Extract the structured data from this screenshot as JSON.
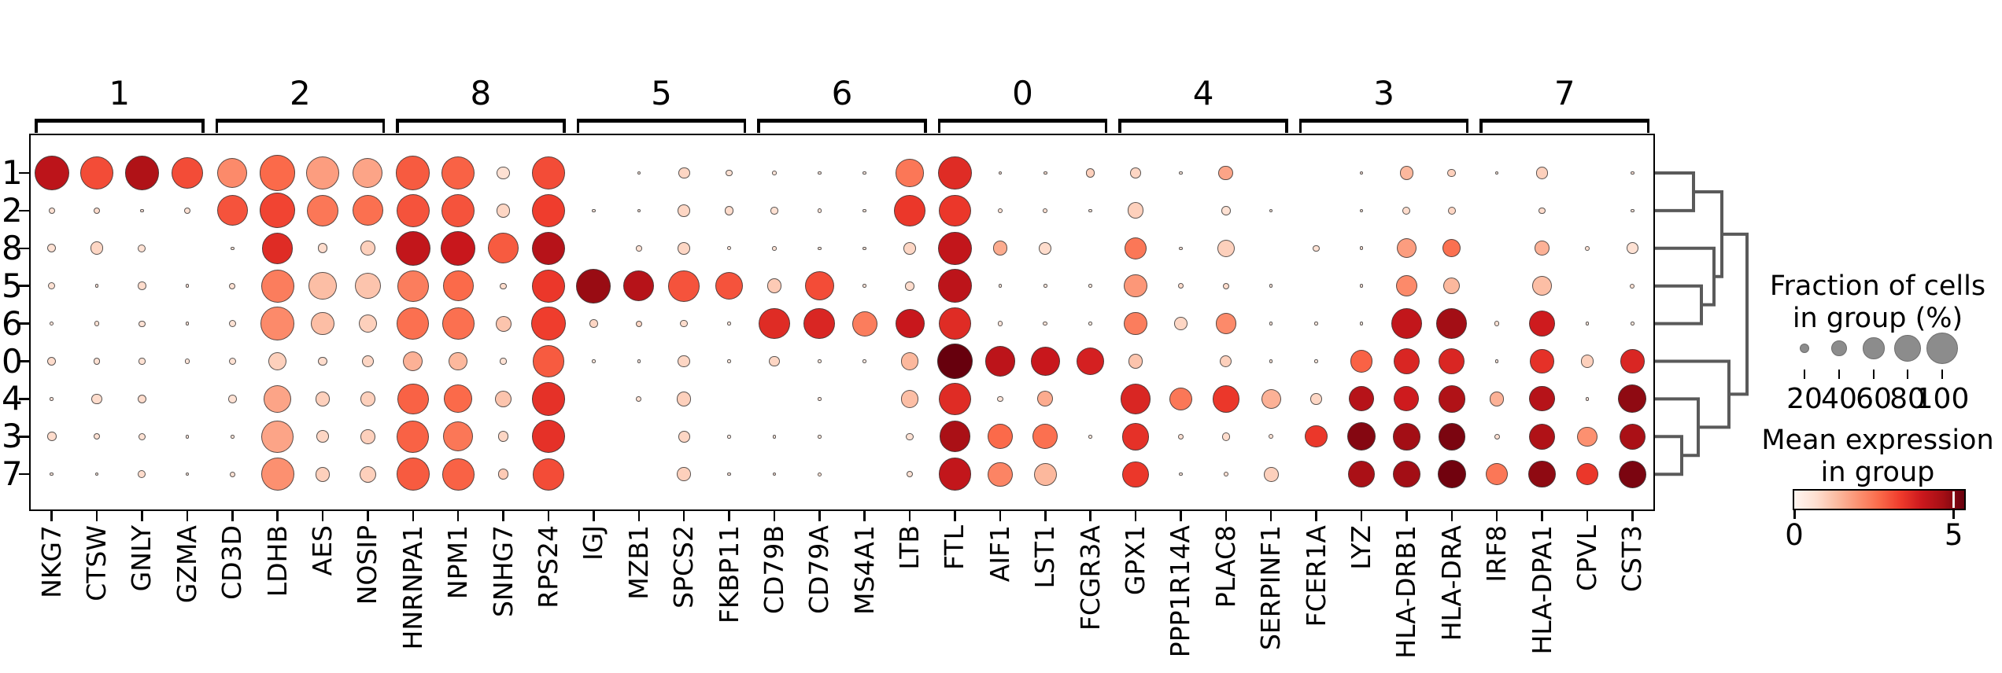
{
  "chart_data": {
    "type": "heatmap",
    "variant": "dotplot",
    "title": "",
    "description": "Dot plot of mean expression and fraction of expressing cells for marker genes across clusters, with cluster dendrogram",
    "rows": [
      "1",
      "2",
      "8",
      "5",
      "6",
      "0",
      "4",
      "3",
      "7"
    ],
    "columns": [
      "NKG7",
      "CTSW",
      "GNLY",
      "GZMA",
      "CD3D",
      "LDHB",
      "AES",
      "NOSIP",
      "HNRNPA1",
      "NPM1",
      "SNHG7",
      "RPS24",
      "IGJ",
      "MZB1",
      "SPCS2",
      "FKBP11",
      "CD79B",
      "CD79A",
      "MS4A1",
      "LTB",
      "FTL",
      "AIF1",
      "LST1",
      "FCGR3A",
      "GPX1",
      "PPP1R14A",
      "PLAC8",
      "SERPINF1",
      "FCER1A",
      "LYZ",
      "HLA-DRB1",
      "HLA-DRA",
      "IRF8",
      "HLA-DPA1",
      "CPVL",
      "CST3"
    ],
    "column_groups": [
      {
        "label": "1",
        "start": 0,
        "end": 3
      },
      {
        "label": "2",
        "start": 4,
        "end": 7
      },
      {
        "label": "8",
        "start": 8,
        "end": 11
      },
      {
        "label": "5",
        "start": 12,
        "end": 15
      },
      {
        "label": "6",
        "start": 16,
        "end": 19
      },
      {
        "label": "0",
        "start": 20,
        "end": 23
      },
      {
        "label": "4",
        "start": 24,
        "end": 27
      },
      {
        "label": "3",
        "start": 28,
        "end": 31
      },
      {
        "label": "7",
        "start": 32,
        "end": 35
      }
    ],
    "cell_encoding": {
      "size": "fraction_of_cells_pct_0_100",
      "color": "mean_expression_0_5"
    },
    "cells": [
      [
        [
          95,
          4.0
        ],
        [
          88,
          2.9
        ],
        [
          92,
          4.2
        ],
        [
          85,
          2.9
        ],
        [
          78,
          2.0
        ],
        [
          98,
          2.5
        ],
        [
          88,
          1.7
        ],
        [
          78,
          1.6
        ],
        [
          92,
          2.7
        ],
        [
          90,
          2.6
        ],
        [
          25,
          0.6
        ],
        [
          88,
          2.9
        ],
        [
          0,
          0
        ],
        [
          2,
          0.4
        ],
        [
          22,
          0.8
        ],
        [
          10,
          0.6
        ],
        [
          6,
          0.5
        ],
        [
          2,
          0.4
        ],
        [
          2,
          0.3
        ],
        [
          70,
          2.3
        ],
        [
          90,
          3.4
        ],
        [
          3,
          0.5
        ],
        [
          5,
          0.6
        ],
        [
          15,
          0.9
        ],
        [
          20,
          0.8
        ],
        [
          2,
          0.4
        ],
        [
          30,
          1.6
        ],
        [
          0,
          0
        ],
        [
          0,
          0
        ],
        [
          4,
          0.5
        ],
        [
          28,
          1.3
        ],
        [
          14,
          0.9
        ],
        [
          2,
          0.4
        ],
        [
          24,
          0.9
        ],
        [
          0,
          0
        ],
        [
          3,
          0.5
        ]
      ],
      [
        [
          10,
          0.6
        ],
        [
          11,
          0.7
        ],
        [
          4,
          0.5
        ],
        [
          10,
          0.6
        ],
        [
          80,
          2.8
        ],
        [
          97,
          3.0
        ],
        [
          85,
          2.3
        ],
        [
          80,
          2.4
        ],
        [
          90,
          2.8
        ],
        [
          90,
          2.8
        ],
        [
          28,
          0.8
        ],
        [
          90,
          3.1
        ],
        [
          2,
          0.4
        ],
        [
          2,
          0.4
        ],
        [
          24,
          0.8
        ],
        [
          16,
          0.7
        ],
        [
          12,
          0.6
        ],
        [
          6,
          0.5
        ],
        [
          2,
          0.4
        ],
        [
          82,
          3.2
        ],
        [
          85,
          3.2
        ],
        [
          7,
          0.6
        ],
        [
          7,
          0.6
        ],
        [
          2,
          0.4
        ],
        [
          35,
          0.9
        ],
        [
          0,
          0
        ],
        [
          16,
          0.6
        ],
        [
          1,
          0.3
        ],
        [
          0,
          0
        ],
        [
          2,
          0.4
        ],
        [
          13,
          0.7
        ],
        [
          13,
          0.8
        ],
        [
          0,
          0
        ],
        [
          10,
          0.7
        ],
        [
          0,
          0
        ],
        [
          1,
          0.4
        ]
      ],
      [
        [
          15,
          0.6
        ],
        [
          26,
          0.8
        ],
        [
          13,
          0.6
        ],
        [
          0,
          0
        ],
        [
          3,
          0.5
        ],
        [
          82,
          3.4
        ],
        [
          18,
          0.7
        ],
        [
          30,
          0.9
        ],
        [
          95,
          3.9
        ],
        [
          95,
          3.8
        ],
        [
          80,
          2.7
        ],
        [
          90,
          4.1
        ],
        [
          0,
          0
        ],
        [
          9,
          0.6
        ],
        [
          24,
          0.8
        ],
        [
          5,
          0.5
        ],
        [
          6,
          0.6
        ],
        [
          2,
          0.5
        ],
        [
          3,
          0.5
        ],
        [
          24,
          0.8
        ],
        [
          90,
          3.9
        ],
        [
          30,
          1.5
        ],
        [
          24,
          0.7
        ],
        [
          0,
          0
        ],
        [
          52,
          2.3
        ],
        [
          2,
          0.5
        ],
        [
          38,
          0.9
        ],
        [
          0,
          0
        ],
        [
          10,
          0.6
        ],
        [
          5,
          0.5
        ],
        [
          45,
          1.7
        ],
        [
          40,
          2.4
        ],
        [
          0,
          0
        ],
        [
          30,
          1.4
        ],
        [
          7,
          0.6
        ],
        [
          22,
          0.6
        ]
      ],
      [
        [
          12,
          0.6
        ],
        [
          3,
          0.5
        ],
        [
          14,
          0.7
        ],
        [
          4,
          0.5
        ],
        [
          10,
          0.6
        ],
        [
          88,
          2.2
        ],
        [
          70,
          1.2
        ],
        [
          65,
          1.1
        ],
        [
          82,
          2.2
        ],
        [
          80,
          2.5
        ],
        [
          10,
          0.7
        ],
        [
          88,
          3.2
        ],
        [
          95,
          4.5
        ],
        [
          80,
          4.1
        ],
        [
          82,
          2.8
        ],
        [
          70,
          2.8
        ],
        [
          30,
          1.0
        ],
        [
          75,
          2.9
        ],
        [
          3,
          0.5
        ],
        [
          16,
          0.7
        ],
        [
          92,
          4.0
        ],
        [
          2,
          0.4
        ],
        [
          2,
          0.4
        ],
        [
          2,
          0.4
        ],
        [
          55,
          1.8
        ],
        [
          8,
          0.7
        ],
        [
          10,
          0.7
        ],
        [
          2,
          0.4
        ],
        [
          0,
          0
        ],
        [
          2,
          0.5
        ],
        [
          50,
          2.0
        ],
        [
          36,
          1.3
        ],
        [
          0,
          0
        ],
        [
          44,
          1.2
        ],
        [
          0,
          0
        ],
        [
          7,
          0.6
        ]
      ],
      [
        [
          5,
          0.5
        ],
        [
          7,
          0.6
        ],
        [
          10,
          0.6
        ],
        [
          3,
          0.5
        ],
        [
          12,
          0.6
        ],
        [
          90,
          2.0
        ],
        [
          55,
          1.2
        ],
        [
          40,
          0.9
        ],
        [
          85,
          2.4
        ],
        [
          85,
          2.4
        ],
        [
          33,
          1.1
        ],
        [
          92,
          3.1
        ],
        [
          14,
          0.8
        ],
        [
          10,
          0.8
        ],
        [
          12,
          0.7
        ],
        [
          3,
          0.5
        ],
        [
          82,
          3.4
        ],
        [
          82,
          3.5
        ],
        [
          62,
          2.2
        ],
        [
          75,
          3.8
        ],
        [
          85,
          3.4
        ],
        [
          7,
          0.5
        ],
        [
          6,
          0.5
        ],
        [
          2,
          0.4
        ],
        [
          55,
          2.2
        ],
        [
          26,
          0.8
        ],
        [
          48,
          2.0
        ],
        [
          2,
          0.4
        ],
        [
          2,
          0.4
        ],
        [
          2,
          0.4
        ],
        [
          80,
          3.9
        ],
        [
          80,
          4.4
        ],
        [
          7,
          0.6
        ],
        [
          65,
          3.7
        ],
        [
          2,
          0.4
        ],
        [
          2,
          0.4
        ]
      ],
      [
        [
          15,
          0.7
        ],
        [
          10,
          0.6
        ],
        [
          10,
          0.6
        ],
        [
          7,
          0.5
        ],
        [
          12,
          0.6
        ],
        [
          40,
          0.9
        ],
        [
          15,
          0.7
        ],
        [
          23,
          0.8
        ],
        [
          45,
          1.4
        ],
        [
          42,
          1.3
        ],
        [
          10,
          0.6
        ],
        [
          85,
          2.7
        ],
        [
          2,
          0.4
        ],
        [
          1,
          0.3
        ],
        [
          24,
          0.8
        ],
        [
          2,
          0.4
        ],
        [
          20,
          0.8
        ],
        [
          2,
          0.4
        ],
        [
          1,
          0.3
        ],
        [
          38,
          1.3
        ],
        [
          98,
          5.0
        ],
        [
          78,
          4.0
        ],
        [
          75,
          3.8
        ],
        [
          70,
          3.6
        ],
        [
          30,
          1.1
        ],
        [
          0,
          0
        ],
        [
          23,
          0.9
        ],
        [
          2,
          0.4
        ],
        [
          2,
          0.4
        ],
        [
          52,
          2.6
        ],
        [
          65,
          3.5
        ],
        [
          65,
          3.5
        ],
        [
          2,
          0.4
        ],
        [
          58,
          3.3
        ],
        [
          26,
          0.9
        ],
        [
          58,
          3.5
        ]
      ],
      [
        [
          4,
          0.5
        ],
        [
          20,
          0.7
        ],
        [
          16,
          0.7
        ],
        [
          0,
          0
        ],
        [
          14,
          0.6
        ],
        [
          70,
          1.6
        ],
        [
          30,
          0.9
        ],
        [
          30,
          0.9
        ],
        [
          82,
          2.6
        ],
        [
          72,
          2.5
        ],
        [
          35,
          1.1
        ],
        [
          90,
          3.3
        ],
        [
          0,
          0
        ],
        [
          8,
          0.6
        ],
        [
          30,
          0.9
        ],
        [
          0,
          0
        ],
        [
          0,
          0
        ],
        [
          4,
          0.5
        ],
        [
          0,
          0
        ],
        [
          38,
          1.2
        ],
        [
          88,
          3.4
        ],
        [
          9,
          0.5
        ],
        [
          33,
          1.5
        ],
        [
          0,
          0
        ],
        [
          80,
          3.5
        ],
        [
          55,
          2.3
        ],
        [
          68,
          3.2
        ],
        [
          45,
          1.4
        ],
        [
          22,
          0.8
        ],
        [
          62,
          4.1
        ],
        [
          62,
          3.7
        ],
        [
          68,
          4.2
        ],
        [
          30,
          1.4
        ],
        [
          62,
          4.1
        ],
        [
          3,
          0.5
        ],
        [
          72,
          4.6
        ]
      ],
      [
        [
          16,
          0.7
        ],
        [
          10,
          0.6
        ],
        [
          12,
          0.6
        ],
        [
          2,
          0.4
        ],
        [
          4,
          0.5
        ],
        [
          85,
          1.6
        ],
        [
          24,
          0.8
        ],
        [
          30,
          0.9
        ],
        [
          85,
          2.6
        ],
        [
          78,
          2.3
        ],
        [
          20,
          0.8
        ],
        [
          88,
          3.3
        ],
        [
          0,
          0
        ],
        [
          0,
          0
        ],
        [
          22,
          0.8
        ],
        [
          1,
          0.3
        ],
        [
          2,
          0.4
        ],
        [
          2,
          0.4
        ],
        [
          0,
          0
        ],
        [
          12,
          0.6
        ],
        [
          82,
          4.3
        ],
        [
          62,
          2.5
        ],
        [
          62,
          2.4
        ],
        [
          2,
          0.4
        ],
        [
          68,
          3.3
        ],
        [
          8,
          0.6
        ],
        [
          14,
          0.7
        ],
        [
          7,
          0.6
        ],
        [
          52,
          3.2
        ],
        [
          72,
          4.7
        ],
        [
          68,
          4.4
        ],
        [
          68,
          4.8
        ],
        [
          8,
          0.6
        ],
        [
          65,
          4.2
        ],
        [
          45,
          1.9
        ],
        [
          65,
          4.3
        ]
      ],
      [
        [
          2,
          0.4
        ],
        [
          2,
          0.4
        ],
        [
          13,
          0.7
        ],
        [
          3,
          0.4
        ],
        [
          8,
          0.6
        ],
        [
          88,
          1.9
        ],
        [
          30,
          0.9
        ],
        [
          36,
          0.9
        ],
        [
          88,
          2.7
        ],
        [
          85,
          2.6
        ],
        [
          20,
          1.0
        ],
        [
          85,
          2.9
        ],
        [
          0,
          0
        ],
        [
          0,
          0
        ],
        [
          28,
          0.9
        ],
        [
          4,
          0.5
        ],
        [
          3,
          0.5
        ],
        [
          5,
          0.6
        ],
        [
          0,
          0
        ],
        [
          10,
          0.6
        ],
        [
          88,
          3.9
        ],
        [
          60,
          2.1
        ],
        [
          55,
          1.3
        ],
        [
          0,
          0
        ],
        [
          65,
          3.2
        ],
        [
          2,
          0.4
        ],
        [
          7,
          0.6
        ],
        [
          30,
          0.9
        ],
        [
          0,
          0
        ],
        [
          68,
          4.3
        ],
        [
          68,
          4.4
        ],
        [
          72,
          4.9
        ],
        [
          52,
          2.3
        ],
        [
          68,
          4.6
        ],
        [
          52,
          3.2
        ],
        [
          70,
          4.8
        ]
      ]
    ],
    "color_scale": {
      "name": "Reds",
      "domain": [
        0,
        5
      ],
      "stops": [
        "#fff5f0",
        "#fee0d2",
        "#fcbba1",
        "#fc9272",
        "#fb6a4a",
        "#ef3b2c",
        "#cb181d",
        "#a50f15",
        "#67000d"
      ]
    },
    "size_legend": {
      "title_line1": "Fraction of cells",
      "title_line2": "in group (%)",
      "values": [
        20,
        40,
        60,
        80,
        100
      ],
      "labels": [
        "20",
        "40",
        "60",
        "80",
        "100"
      ],
      "dot_color": "#8c8c8c"
    },
    "colorbar": {
      "title_line1": "Mean expression",
      "title_line2": "in group",
      "min_label": "0",
      "max_label": "5",
      "tick_fraction": 0.93
    },
    "dendrogram": {
      "orientation": "right",
      "color": "#5a5a5a",
      "leaf_order": [
        "1",
        "2",
        "8",
        "5",
        "6",
        "0",
        "4",
        "3",
        "7"
      ],
      "merges": [
        {
          "a": "L1",
          "b": "L2",
          "depth": 49
        },
        {
          "a": "L5",
          "b": "L6",
          "depth": 59
        },
        {
          "a": "L8",
          "b": "M1",
          "depth": 75
        },
        {
          "a": "M0",
          "b": "M2",
          "depth": 85
        },
        {
          "a": "L3",
          "b": "L7",
          "depth": 34
        },
        {
          "a": "L4",
          "b": "M4",
          "depth": 55
        },
        {
          "a": "L0",
          "b": "M5",
          "depth": 94
        },
        {
          "a": "M3",
          "b": "M6",
          "depth": 117
        }
      ]
    }
  }
}
